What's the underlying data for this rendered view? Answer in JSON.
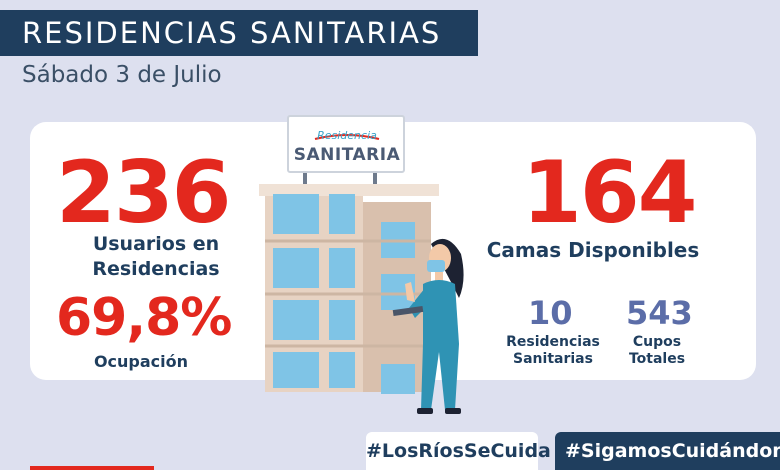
{
  "header": {
    "title": "RESIDENCIAS SANITARIAS",
    "date": "Sábado 3 de Julio"
  },
  "left": {
    "users_value": "236",
    "users_label_1": "Usuarios en",
    "users_label_2": "Residencias",
    "occupancy_value": "69,8%",
    "occupancy_label": "Ocupación"
  },
  "right": {
    "beds_value": "164",
    "beds_label": "Camas Disponibles",
    "residences_value": "10",
    "residences_label_1": "Residencias",
    "residences_label_2": "Sanitarias",
    "slots_value": "543",
    "slots_label_1": "Cupos",
    "slots_label_2": "Totales"
  },
  "sign": {
    "line1": "Residencia",
    "line2": "SANITARIA"
  },
  "footer": {
    "hashtag_1": "#LosRíosSeCuida",
    "hashtag_2": "#SigamosCuidándonos"
  },
  "colors": {
    "navy": "#1f3e5e",
    "red": "#e3281e",
    "slate_blue": "#5b6da8",
    "background": "#dde0ef",
    "building": "#e7d3c3",
    "window": "#7fc4e6",
    "scrubs": "#2f93b4"
  }
}
